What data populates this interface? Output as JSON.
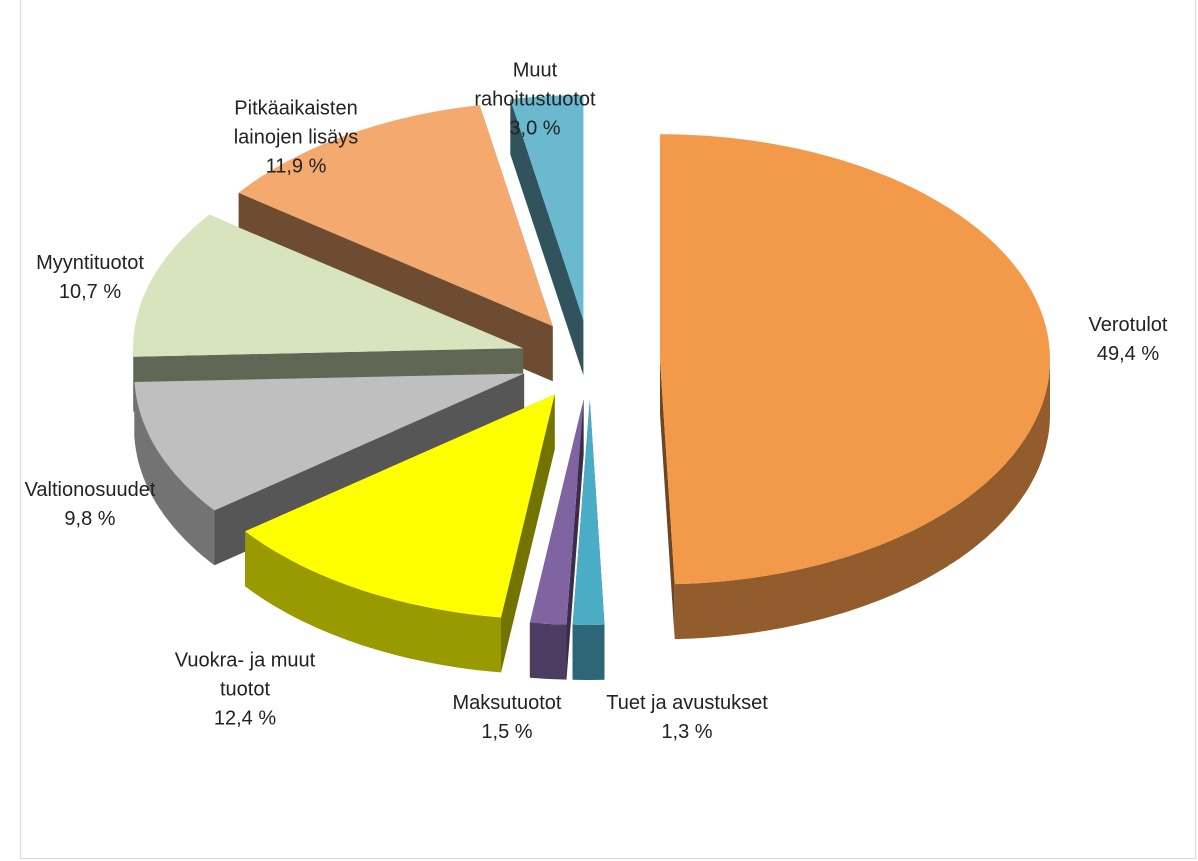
{
  "chart_data": {
    "type": "pie3d",
    "categories": [
      "Verotulot",
      "Tuet ja avustukset",
      "Maksutuotot",
      "Vuokra- ja muut tuotot",
      "Valtionosuudet",
      "Myyntituotot",
      "Pitkäaikaisten lainojen lisäys",
      "Muut rahoitustuotot"
    ],
    "values": [
      49.4,
      1.3,
      1.5,
      12.4,
      9.8,
      10.7,
      11.9,
      3.0
    ],
    "value_labels": [
      "49,4 %",
      "1,3 %",
      "1,5 %",
      "12,4 %",
      "9,8 %",
      "10,7 %",
      "11,9 %",
      "3,0 %"
    ],
    "colors": [
      "#f39a4a",
      "#4bacc6",
      "#8064a2",
      "#ffff00",
      "#bfbfbf",
      "#d7e4bd",
      "#f4a96e",
      "#6bb9cf"
    ]
  }
}
